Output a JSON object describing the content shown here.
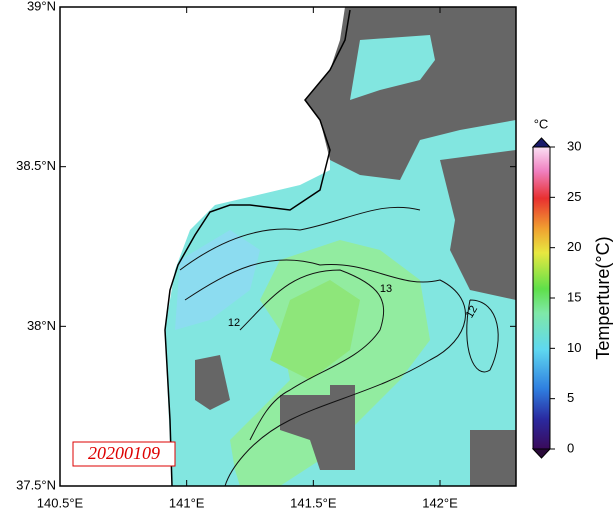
{
  "map": {
    "date": "20200109",
    "xlim": [
      140.5,
      142.3
    ],
    "ylim": [
      37.5,
      39
    ],
    "xticks": [
      {
        "value": 140.5,
        "label": "140.5°E"
      },
      {
        "value": 141,
        "label": "141°E"
      },
      {
        "value": 141.5,
        "label": "141.5°E"
      },
      {
        "value": 142,
        "label": "142°E"
      }
    ],
    "yticks": [
      {
        "value": 37.5,
        "label": "37.5°N"
      },
      {
        "value": 38,
        "label": "38°N"
      },
      {
        "value": 38.5,
        "label": "38.5°N"
      },
      {
        "value": 39,
        "label": "39°N"
      }
    ],
    "contour_labels": [
      13,
      12,
      12
    ]
  },
  "colorbar": {
    "unit": "°C",
    "title": "Temperture(°C)",
    "lim": [
      0,
      30
    ],
    "ticks": [
      0,
      5,
      10,
      15,
      20,
      25,
      30
    ]
  }
}
